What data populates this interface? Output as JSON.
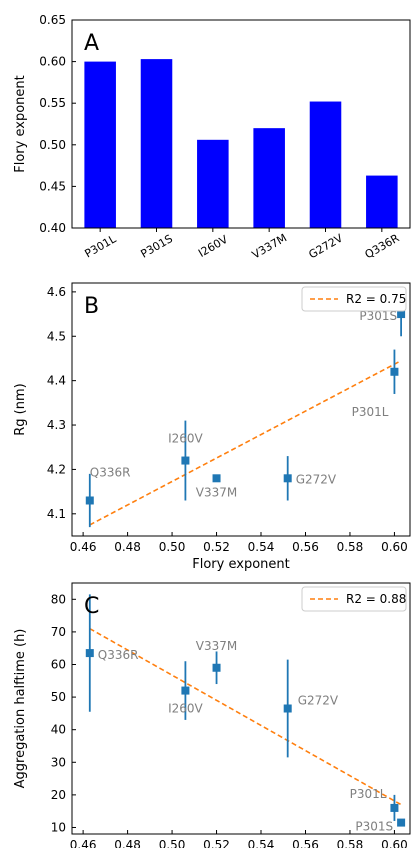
{
  "colors": {
    "bar": "#0000ff",
    "marker": "#1f77b4",
    "fit_line": "#ff7f0e",
    "point_label": "#7f7f7f",
    "axis": "#000000"
  },
  "chart_data": [
    {
      "type": "bar",
      "panel_label": "A",
      "categories": [
        "P301L",
        "P301S",
        "I260V",
        "V337M",
        "G272V",
        "Q336R"
      ],
      "values": [
        0.6,
        0.603,
        0.506,
        0.52,
        0.552,
        0.463
      ],
      "ylabel": "Flory exponent",
      "ylim": [
        0.4,
        0.65
      ],
      "yticks": [
        "0.40",
        "0.45",
        "0.50",
        "0.55",
        "0.60",
        "0.65"
      ],
      "grid": false
    },
    {
      "type": "scatter",
      "panel_label": "B",
      "xlabel": "Flory exponent",
      "ylabel": "Rg (nm)",
      "xlim": [
        0.455,
        0.607
      ],
      "ylim": [
        4.05,
        4.62
      ],
      "xticks": [
        "0.46",
        "0.48",
        "0.50",
        "0.52",
        "0.54",
        "0.56",
        "0.58",
        "0.60"
      ],
      "yticks": [
        "4.1",
        "4.2",
        "4.3",
        "4.4",
        "4.5",
        "4.6"
      ],
      "legend": {
        "position": "top-right",
        "label": "R2 = 0.75"
      },
      "fit": {
        "x": [
          0.463,
          0.603
        ],
        "y": [
          4.075,
          4.445
        ]
      },
      "points": [
        {
          "label": "Q336R",
          "x": 0.463,
          "y": 4.13,
          "err": 0.06
        },
        {
          "label": "I260V",
          "x": 0.506,
          "y": 4.22,
          "err": 0.09
        },
        {
          "label": "V337M",
          "x": 0.52,
          "y": 4.18,
          "err": 0.0
        },
        {
          "label": "G272V",
          "x": 0.552,
          "y": 4.18,
          "err": 0.05
        },
        {
          "label": "P301L",
          "x": 0.6,
          "y": 4.42,
          "err": 0.05
        },
        {
          "label": "P301S",
          "x": 0.603,
          "y": 4.55,
          "err": 0.05
        }
      ],
      "grid": false
    },
    {
      "type": "scatter",
      "panel_label": "C",
      "xlabel": "Flory exponent",
      "ylabel": "Aggregation halftime (h)",
      "xlim": [
        0.455,
        0.607
      ],
      "ylim": [
        8,
        85
      ],
      "xticks": [
        "0.46",
        "0.48",
        "0.50",
        "0.52",
        "0.54",
        "0.56",
        "0.58",
        "0.60"
      ],
      "yticks": [
        "10",
        "20",
        "30",
        "40",
        "50",
        "60",
        "70",
        "80"
      ],
      "legend": {
        "position": "top-right",
        "label": "R2 = 0.88"
      },
      "fit": {
        "x": [
          0.463,
          0.603
        ],
        "y": [
          71,
          17
        ]
      },
      "points": [
        {
          "label": "Q336R",
          "x": 0.463,
          "y": 63.5,
          "err": 18
        },
        {
          "label": "I260V",
          "x": 0.506,
          "y": 52,
          "err": 9
        },
        {
          "label": "V337M",
          "x": 0.52,
          "y": 59,
          "err": 5
        },
        {
          "label": "G272V",
          "x": 0.552,
          "y": 46.5,
          "err": 15
        },
        {
          "label": "P301L",
          "x": 0.6,
          "y": 16,
          "err": 4
        },
        {
          "label": "P301S",
          "x": 0.603,
          "y": 11.5,
          "err": 0
        }
      ],
      "grid": false
    }
  ]
}
